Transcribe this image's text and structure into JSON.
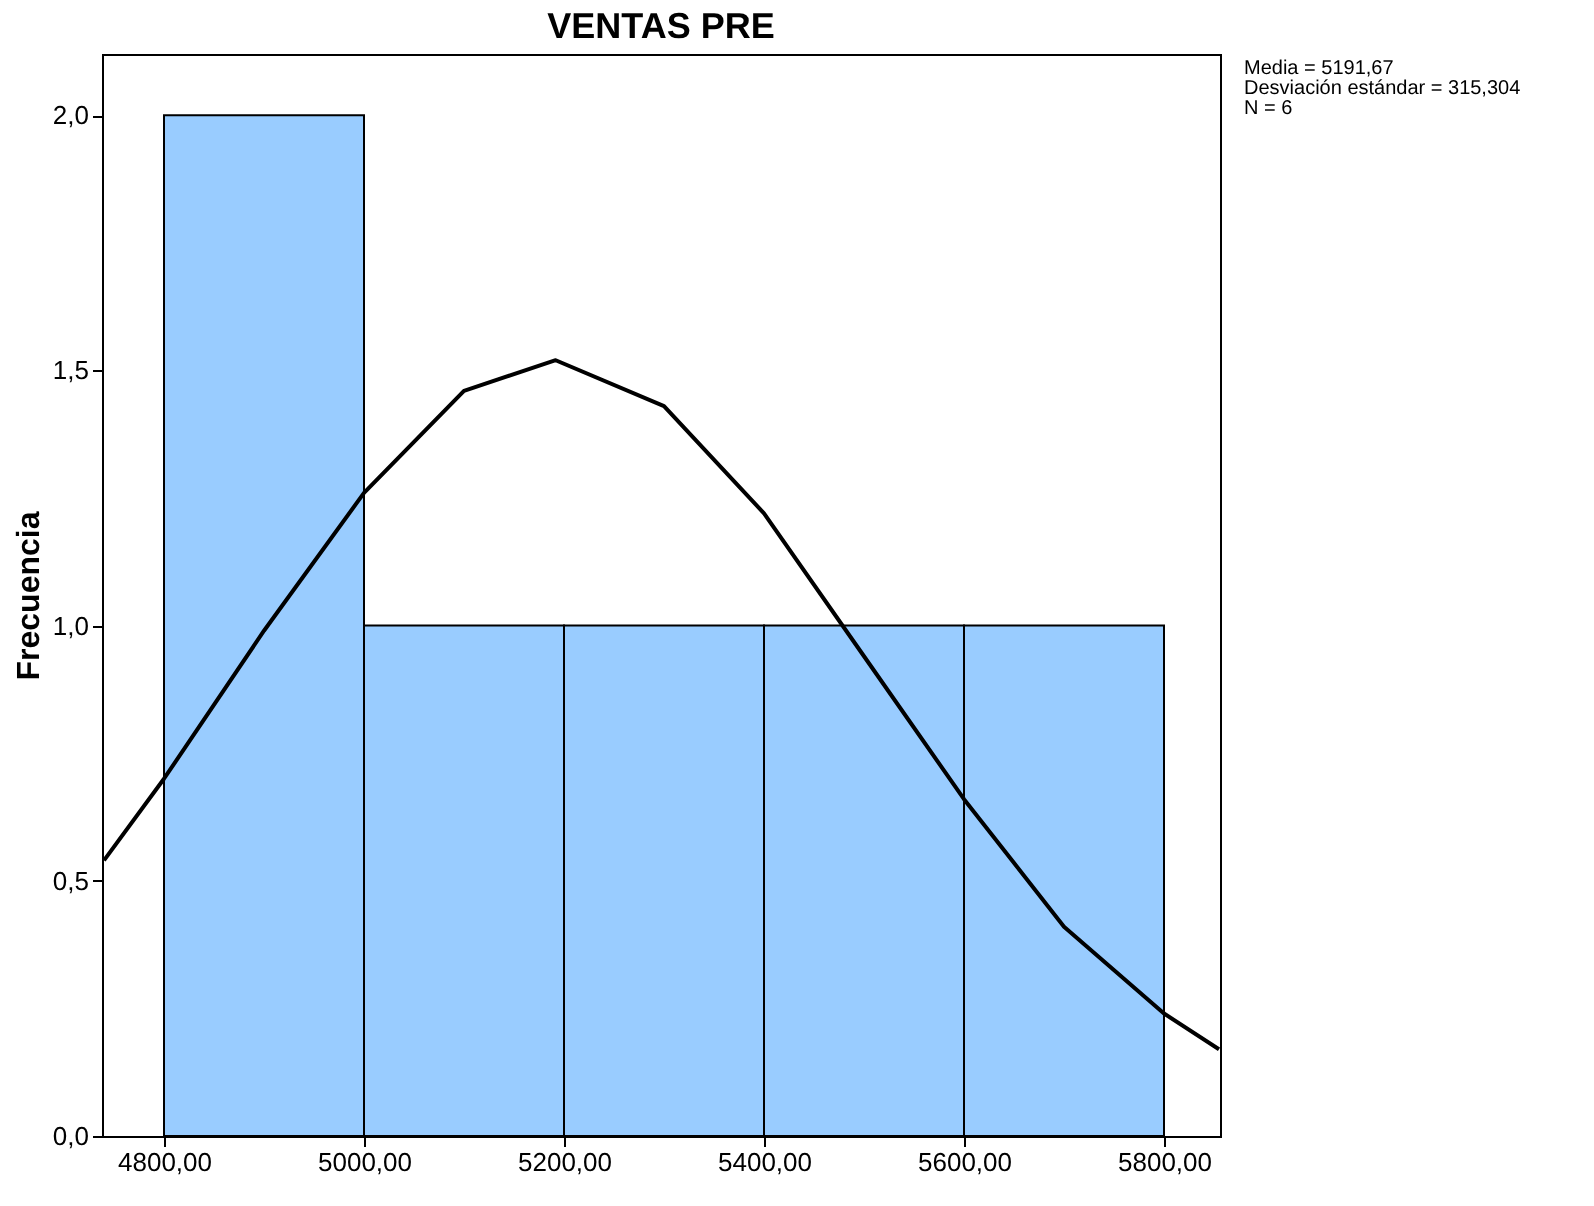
{
  "chart_data": {
    "type": "histogram",
    "title": "VENTAS PRE",
    "ylabel": "Frecuencia",
    "bins": [
      4800,
      5000,
      5200,
      5400,
      5600,
      5800
    ],
    "values": [
      2,
      1,
      1,
      1,
      1
    ],
    "color": "#99ccff",
    "series": [
      {
        "type": "line",
        "color": "#000000",
        "x": [
          4740,
          4800,
          4900,
          5000,
          5100,
          5191.67,
          5300,
          5400,
          5500,
          5600,
          5700,
          5800,
          5855
        ],
        "values": [
          0.54,
          0.7,
          0.99,
          1.26,
          1.46,
          1.52,
          1.43,
          1.22,
          0.94,
          0.66,
          0.41,
          0.24,
          0.17
        ]
      }
    ],
    "xlim": [
      4738,
      5856
    ],
    "ylim": [
      0,
      2.12
    ],
    "xticks": [
      {
        "value": 4800,
        "label": "4800,00"
      },
      {
        "value": 5000,
        "label": "5000,00"
      },
      {
        "value": 5200,
        "label": "5200,00"
      },
      {
        "value": 5400,
        "label": "5400,00"
      },
      {
        "value": 5600,
        "label": "5600,00"
      },
      {
        "value": 5800,
        "label": "5800,00"
      }
    ],
    "yticks": [
      {
        "value": 0,
        "label": "0,0"
      },
      {
        "value": 0.5,
        "label": "0,5"
      },
      {
        "value": 1,
        "label": "1,0"
      },
      {
        "value": 1.5,
        "label": "1,5"
      },
      {
        "value": 2,
        "label": "2,0"
      }
    ],
    "annotations": [
      "Media = 5191,67",
      "Desviación estándar = 315,304",
      "N = 6"
    ],
    "grid": false,
    "marker": "none",
    "line_style": "solid"
  }
}
